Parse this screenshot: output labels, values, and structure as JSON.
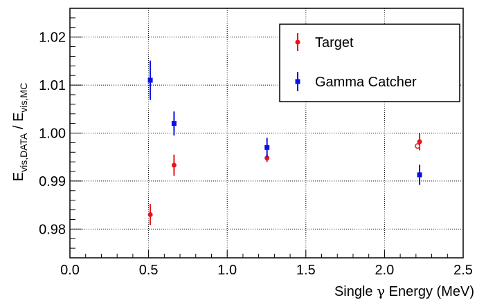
{
  "chart_data": {
    "type": "scatter",
    "xlabel_prefix": "Single ",
    "xlabel_symbol": "γ",
    "xlabel_suffix": " Energy (MeV)",
    "ylabel": {
      "main1": "E",
      "sub1": "vis,DATA",
      "sep": " / E",
      "sub2": "vis,MC"
    },
    "xlim": [
      0,
      2.5
    ],
    "ylim": [
      0.974,
      1.026
    ],
    "xticks": [
      "0.0",
      "0.5",
      "1.0",
      "1.5",
      "2.0",
      "2.5"
    ],
    "xtick_values": [
      0,
      0.5,
      1.0,
      1.5,
      2.0,
      2.5
    ],
    "yticks": [
      "0.98",
      "0.99",
      "1.00",
      "1.01",
      "1.02"
    ],
    "ytick_values": [
      0.98,
      0.99,
      1.0,
      1.01,
      1.02
    ],
    "grid": true,
    "legend_position": "top-right",
    "series": [
      {
        "name": "Target",
        "color": "#e8141b",
        "marker": "circle",
        "points": [
          {
            "x": 0.511,
            "y": 0.983,
            "err": 0.0022
          },
          {
            "x": 0.662,
            "y": 0.9933,
            "err": 0.0022
          },
          {
            "x": 1.253,
            "y": 0.9948,
            "err": 0.0008
          },
          {
            "x": 2.223,
            "y": 0.9982,
            "err": 0.0018
          }
        ],
        "open_points": [
          {
            "x": 2.21,
            "y": 0.9973
          }
        ]
      },
      {
        "name": "Gamma Catcher",
        "color": "#0a10e6",
        "marker": "square",
        "points": [
          {
            "x": 0.511,
            "y": 1.011,
            "err": 0.0041
          },
          {
            "x": 0.662,
            "y": 1.002,
            "err": 0.0025
          },
          {
            "x": 1.253,
            "y": 0.997,
            "err": 0.002
          },
          {
            "x": 2.223,
            "y": 0.9913,
            "err": 0.0021
          }
        ]
      }
    ]
  }
}
